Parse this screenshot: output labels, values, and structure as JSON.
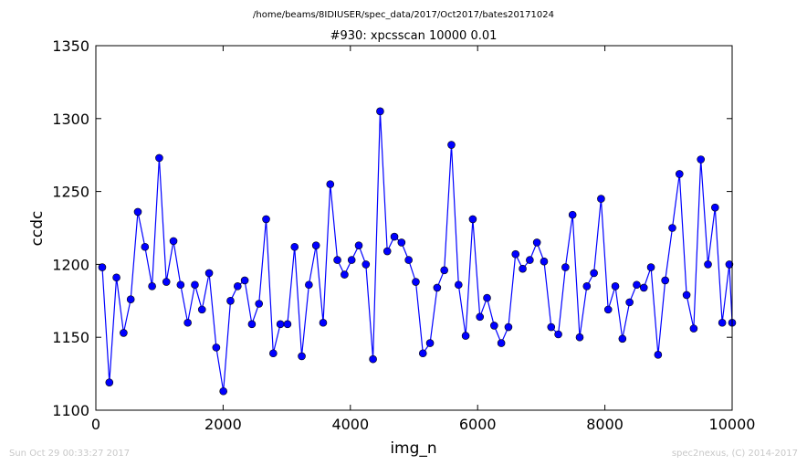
{
  "header": {
    "path": "/home/beams/8IDIUSER/spec_data/2017/Oct2017/bates20171024"
  },
  "footer": {
    "timestamp": "Sun Oct 29 00:33:27 2017",
    "credit": "spec2nexus, (C) 2014-2017"
  },
  "colors": {
    "series": "#0000ff",
    "axes": "#000000",
    "footer_text": "#c8c8c8"
  },
  "chart_data": {
    "type": "line",
    "title": "#930: xpcsscan 10000 0.01",
    "xlabel": "img_n",
    "ylabel": "ccdc",
    "xlim": [
      0,
      10000
    ],
    "ylim": [
      1100,
      1350
    ],
    "grid": false,
    "marker": "circle",
    "xticks": [
      "0",
      "2000",
      "4000",
      "6000",
      "8000",
      "10000"
    ],
    "yticks": [
      "1100",
      "1150",
      "1200",
      "1250",
      "1300",
      "1350"
    ],
    "x": [
      100,
      212,
      324,
      436,
      548,
      660,
      772,
      884,
      996,
      1108,
      1220,
      1332,
      1444,
      1556,
      1668,
      1780,
      1892,
      2004,
      2116,
      2228,
      2340,
      2452,
      2564,
      2676,
      2788,
      2900,
      3012,
      3124,
      3236,
      3348,
      3460,
      3572,
      3684,
      3796,
      3908,
      4020,
      4132,
      4244,
      4356,
      4468,
      4580,
      4692,
      4804,
      4916,
      5028,
      5140,
      5252,
      5364,
      5476,
      5588,
      5700,
      5812,
      5924,
      6036,
      6148,
      6260,
      6372,
      6484,
      6596,
      6708,
      6820,
      6932,
      7044,
      7156,
      7268,
      7380,
      7492,
      7604,
      7716,
      7828,
      7940,
      8052,
      8164,
      8276,
      8388,
      8500,
      8612,
      8724,
      8836,
      8948,
      9060,
      9172,
      9284,
      9396,
      9508,
      9620,
      9732,
      9844,
      9956,
      10000
    ],
    "y": [
      1198,
      1119,
      1191,
      1153,
      1176,
      1236,
      1212,
      1185,
      1273,
      1188,
      1216,
      1186,
      1160,
      1186,
      1169,
      1194,
      1143,
      1113,
      1175,
      1185,
      1189,
      1159,
      1173,
      1231,
      1139,
      1159,
      1159,
      1212,
      1137,
      1186,
      1213,
      1160,
      1255,
      1203,
      1193,
      1203,
      1213,
      1200,
      1135,
      1305,
      1209,
      1219,
      1215,
      1203,
      1188,
      1139,
      1146,
      1184,
      1196,
      1282,
      1186,
      1151,
      1231,
      1164,
      1177,
      1158,
      1146,
      1157,
      1207,
      1197,
      1203,
      1215,
      1202,
      1157,
      1152,
      1198,
      1234,
      1150,
      1185,
      1194,
      1245,
      1169,
      1185,
      1149,
      1174,
      1186,
      1184,
      1198,
      1138,
      1189,
      1225,
      1262,
      1179,
      1156,
      1272,
      1200,
      1239,
      1160,
      1200,
      1160
    ]
  }
}
